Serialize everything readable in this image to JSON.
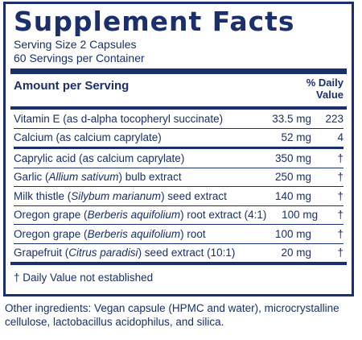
{
  "title": "Supplement Facts",
  "serving_size": "Serving Size 2 Capsules",
  "servings_per_container": "60 Servings per Container",
  "header": {
    "amount_per_serving": "Amount per Serving",
    "daily_value_line1": "% Daily",
    "daily_value_line2": "Value"
  },
  "rows": [
    {
      "pre": "Vitamin E (as d-alpha tocopheryl succinate)",
      "italic": "",
      "post": "",
      "amount": "33.5 mg",
      "dv": "223"
    },
    {
      "pre": "Calcium (as calcium caprylate)",
      "italic": "",
      "post": "",
      "amount": "52 mg",
      "dv": "4"
    },
    {
      "pre": "Caprylic acid (as calcium caprylate)",
      "italic": "",
      "post": "",
      "amount": "350 mg",
      "dv": "†"
    },
    {
      "pre": "Garlic (",
      "italic": "Allium sativum",
      "post": ") bulb extract",
      "amount": "250 mg",
      "dv": "†"
    },
    {
      "pre": "Milk thistle (",
      "italic": "Silybum marianum",
      "post": ") seed extract",
      "amount": "140 mg",
      "dv": "†"
    },
    {
      "pre": "Oregon grape (",
      "italic": "Berberis aquifolium",
      "post": ") root extract (4:1)",
      "amount": "100 mg",
      "dv": "†"
    },
    {
      "pre": "Oregon grape (",
      "italic": "Berberis aquifolium",
      "post": ") root",
      "amount": "100 mg",
      "dv": "†"
    },
    {
      "pre": "Grapefruit (",
      "italic": "Citrus paradisi",
      "post": ") seed extract (10:1)",
      "amount": "20 mg",
      "dv": "†"
    }
  ],
  "footnote": "† Daily Value not established",
  "other_ingredients": "Other ingredients: Vegan capsule (HPMC and water), microcrystalline cellulose, lactobacillus acidophilus, and silica.",
  "colors": {
    "ink": "#1a2f6b",
    "background": "#ffffff"
  }
}
